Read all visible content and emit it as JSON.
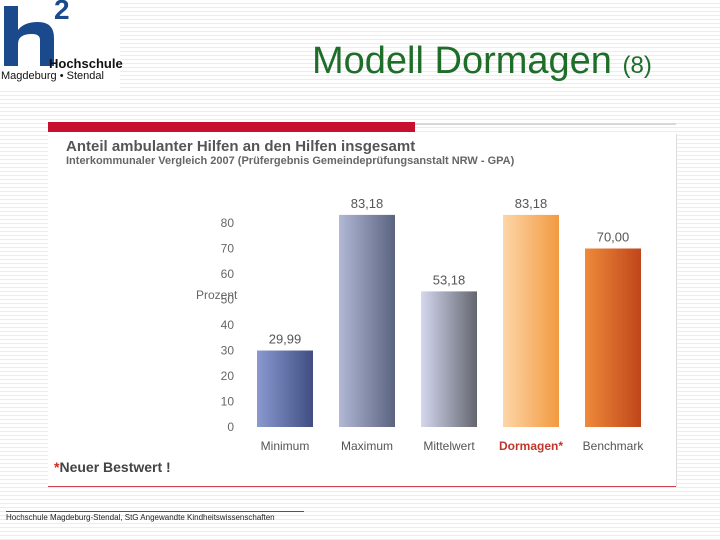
{
  "header": {
    "logo": {
      "superscript": "2",
      "name": "Hochschule",
      "city": "Magdeburg • Stendal"
    },
    "title": "Modell Dormagen",
    "title_suffix": "(8)"
  },
  "chart_data": {
    "type": "bar",
    "title": "Anteil ambulanter Hilfen an den Hilfen insgesamt",
    "subtitle": "Interkommunaler Vergleich 2007 (Prüfergebnis Gemeindeprüfungsanstalt NRW - GPA)",
    "ylabel": "Prozent",
    "xlabel": "",
    "ylim": [
      0,
      80
    ],
    "yticks": [
      0,
      10,
      20,
      30,
      40,
      50,
      60,
      70,
      80
    ],
    "categories": [
      "Minimum",
      "Maximum",
      "Mittelwert",
      "Dormagen*",
      "Benchmark"
    ],
    "values": [
      29.99,
      83.18,
      53.18,
      83.18,
      70.0
    ],
    "value_labels": [
      "29,99",
      "83,18",
      "53,18",
      "83,18",
      "70,00"
    ],
    "highlight_index": 3,
    "colors": [
      {
        "light": "#8a9ad0",
        "dark": "#3f4d82"
      },
      {
        "light": "#b2b8d6",
        "dark": "#5a6380"
      },
      {
        "light": "#d5d7ef",
        "dark": "#62666f"
      },
      {
        "light": "#fdd6a8",
        "dark": "#f29a40"
      },
      {
        "light": "#ee8a3a",
        "dark": "#c0461a"
      }
    ],
    "grid": false
  },
  "note": {
    "star": "*",
    "text": "Neuer Bestwert !"
  },
  "footer": "Hochschule Magdeburg-Stendal, StG Angewandte Kindheitswissenschaften"
}
